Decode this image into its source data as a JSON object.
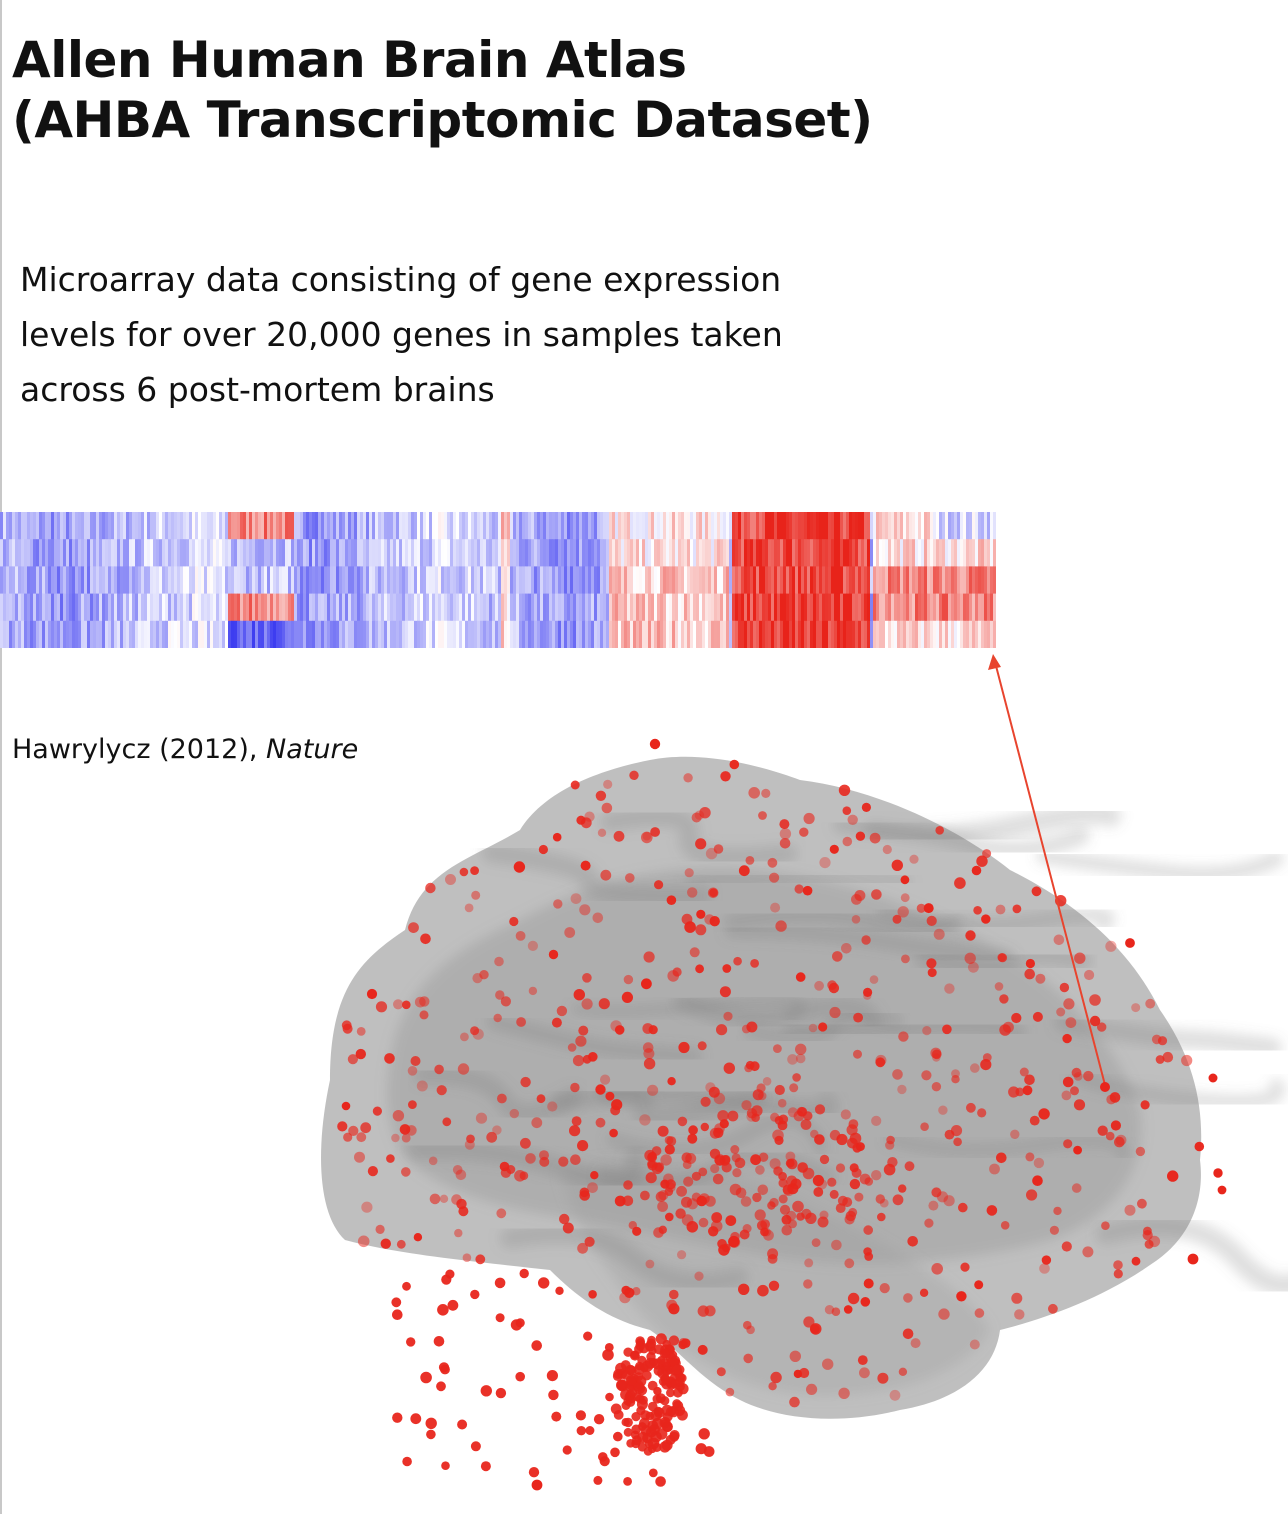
{
  "title_line1": "Allen Human Brain Atlas",
  "title_line2": "(AHBA Transcriptomic Dataset)",
  "description_line1": "Microarray data consisting of gene expression",
  "description_line2": "levels for over 20,000 genes in samples taken",
  "description_line3": "across 6 post-mortem brains",
  "citation_author": "Hawrylycz (2012),",
  "citation_journal": "Nature",
  "colors": {
    "low_expression": "#3d3df0",
    "mid_expression": "#ffffff",
    "high_expression": "#e8231a",
    "brain_fill": "#8a8a8a",
    "sample_dot": "#e8261c",
    "arrow": "#e8442e"
  }
}
